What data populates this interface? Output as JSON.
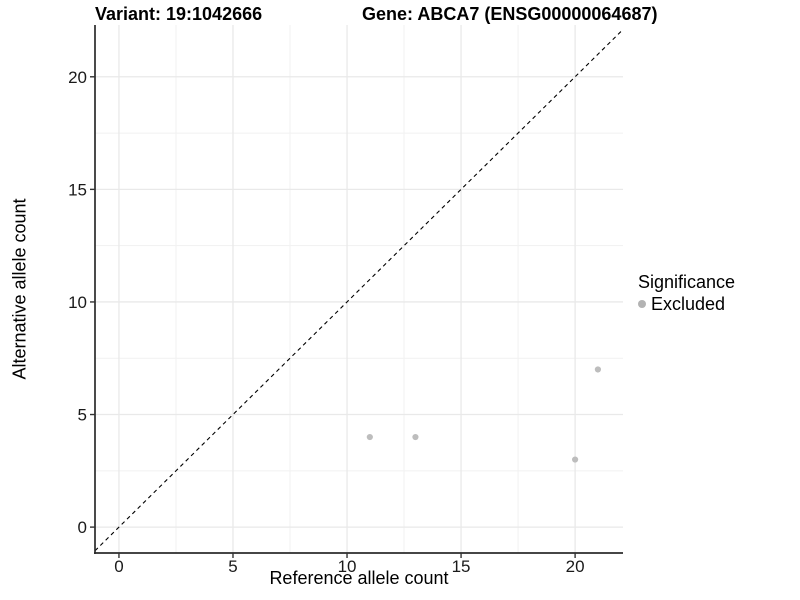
{
  "titles": {
    "variant": "Variant: 19:1042666",
    "gene": "Gene: ABCA7 (ENSG00000064687)"
  },
  "axes": {
    "x_label": "Reference allele count",
    "y_label": "Alternative allele count"
  },
  "legend": {
    "title": "Significance",
    "items": [
      {
        "label": "Excluded",
        "color": "#b3b3b3"
      }
    ]
  },
  "colors": {
    "background": "#ffffff",
    "point": "#bdbdbd",
    "grid_major": "#e9e9e9",
    "grid_minor": "#f1f1f1",
    "axis_line": "#2b2b2b",
    "tick_mark": "#333333",
    "tick_text": "#1a1a1a",
    "reference_line": "#000000"
  },
  "chart_data": {
    "type": "scatter",
    "title": "Variant: 19:1042666 — Gene: ABCA7 (ENSG00000064687)",
    "xlabel": "Reference allele count",
    "ylabel": "Alternative allele count",
    "series": [
      {
        "name": "Excluded",
        "color": "#bdbdbd",
        "points": [
          {
            "x": 11,
            "y": 4
          },
          {
            "x": 13,
            "y": 4
          },
          {
            "x": 20,
            "y": 3
          },
          {
            "x": 21,
            "y": 7
          }
        ]
      }
    ],
    "reference_line": {
      "kind": "identity",
      "equation": "y = x",
      "style": "dashed"
    },
    "x_ticks": [
      0,
      5,
      10,
      15,
      20
    ],
    "y_ticks": [
      0,
      5,
      10,
      15,
      20
    ],
    "x_minor": [
      2.5,
      7.5,
      12.5,
      17.5
    ],
    "y_minor": [
      2.5,
      7.5,
      12.5,
      17.5
    ],
    "xlim": [
      -1.05,
      22.1
    ],
    "ylim": [
      -1.15,
      22.3
    ],
    "grid": true,
    "legend_position": "right",
    "legend_title": "Significance"
  }
}
